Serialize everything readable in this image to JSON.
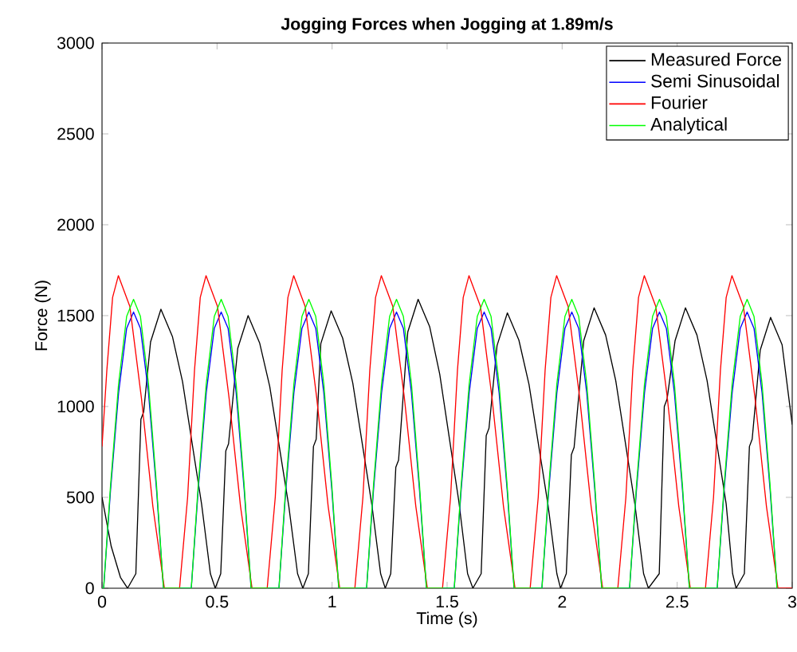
{
  "chart_data": {
    "type": "line",
    "title": "Jogging Forces when Jogging at 1.89m/s",
    "xlabel": "Time (s)",
    "ylabel": "Force (N)",
    "xlim": [
      0,
      3
    ],
    "ylim": [
      0,
      3000
    ],
    "xticks": [
      0,
      0.5,
      1,
      1.5,
      2,
      2.5,
      3
    ],
    "yticks": [
      0,
      500,
      1000,
      1500,
      2000,
      2500,
      3000
    ],
    "grid": false,
    "legend": "top right",
    "marker": "none",
    "line_style": "solid",
    "series": [
      {
        "name": "Measured Force",
        "color": "#000000",
        "x": [
          0,
          0.04,
          0.08,
          0.111,
          0.147,
          0.169,
          0.181,
          0.211,
          0.256,
          0.306,
          0.35,
          0.433,
          0.471,
          0.492,
          0.516,
          0.538,
          0.55,
          0.59,
          0.635,
          0.685,
          0.729,
          0.812,
          0.85,
          0.873,
          0.897,
          0.919,
          0.931,
          0.951,
          0.996,
          1.046,
          1.09,
          1.173,
          1.211,
          1.231,
          1.255,
          1.277,
          1.289,
          1.329,
          1.374,
          1.424,
          1.468,
          1.551,
          1.589,
          1.612,
          1.648,
          1.67,
          1.682,
          1.717,
          1.762,
          1.812,
          1.856,
          1.939,
          1.977,
          1.993,
          2.018,
          2.04,
          2.052,
          2.094,
          2.139,
          2.189,
          2.233,
          2.316,
          2.354,
          2.375,
          2.422,
          2.444,
          2.456,
          2.491,
          2.536,
          2.586,
          2.63,
          2.713,
          2.741,
          2.756,
          2.792,
          2.814,
          2.826,
          2.861,
          2.906,
          2.956,
          3.0
        ],
        "values": [
          500,
          230,
          60,
          0,
          80,
          930,
          970,
          1355,
          1535,
          1385,
          1136,
          461,
          80,
          0,
          80,
          755,
          795,
          1320,
          1500,
          1350,
          1110,
          450,
          80,
          0,
          80,
          780,
          820,
          1346,
          1526,
          1376,
          1129,
          458,
          80,
          0,
          80,
          665,
          705,
          1410,
          1590,
          1440,
          1177,
          477,
          80,
          0,
          80,
          840,
          880,
          1335,
          1515,
          1365,
          1121,
          455,
          80,
          0,
          80,
          735,
          775,
          1363,
          1543,
          1393,
          1142,
          463,
          80,
          0,
          80,
          1000,
          1040,
          1363,
          1543,
          1393,
          1142,
          463,
          80,
          0,
          80,
          780,
          820,
          1310,
          1490,
          1340,
          900
        ]
      },
      {
        "name": "Semi Sinusoidal",
        "color": "#0000ff",
        "x": [
          0,
          0.007,
          0.037,
          0.072,
          0.107,
          0.137,
          0.167,
          0.202,
          0.237,
          0.267,
          0.388,
          0.418,
          0.453,
          0.488,
          0.518,
          0.548,
          0.583,
          0.618,
          0.648,
          0.769,
          0.799,
          0.834,
          0.869,
          0.899,
          0.929,
          0.964,
          0.999,
          1.029,
          1.15,
          1.18,
          1.215,
          1.25,
          1.28,
          1.31,
          1.345,
          1.38,
          1.41,
          1.531,
          1.561,
          1.596,
          1.631,
          1.661,
          1.691,
          1.726,
          1.761,
          1.791,
          1.912,
          1.942,
          1.977,
          2.012,
          2.042,
          2.072,
          2.107,
          2.142,
          2.172,
          2.293,
          2.323,
          2.358,
          2.393,
          2.423,
          2.453,
          2.488,
          2.523,
          2.553,
          2.674,
          2.704,
          2.739,
          2.774,
          2.804,
          2.834,
          2.869,
          2.904,
          2.934
        ],
        "values": [
          0,
          0,
          540,
          1075,
          1430,
          1520,
          1430,
          1075,
          540,
          0,
          0,
          540,
          1075,
          1430,
          1520,
          1430,
          1075,
          540,
          0,
          0,
          540,
          1075,
          1430,
          1520,
          1430,
          1075,
          540,
          0,
          0,
          540,
          1075,
          1430,
          1520,
          1430,
          1075,
          540,
          0,
          0,
          540,
          1075,
          1430,
          1520,
          1430,
          1075,
          540,
          0,
          0,
          540,
          1075,
          1430,
          1520,
          1430,
          1075,
          540,
          0,
          0,
          540,
          1075,
          1430,
          1520,
          1430,
          1075,
          540,
          0,
          0,
          540,
          1075,
          1430,
          1520,
          1430,
          1075,
          540,
          0
        ]
      },
      {
        "name": "Fourier",
        "color": "#ff0000",
        "x": [
          0,
          0.021,
          0.046,
          0.071,
          0.121,
          0.171,
          0.221,
          0.271,
          0.337,
          0.372,
          0.402,
          0.427,
          0.452,
          0.502,
          0.552,
          0.602,
          0.652,
          0.718,
          0.753,
          0.783,
          0.808,
          0.833,
          0.883,
          0.933,
          0.983,
          1.033,
          1.099,
          1.134,
          1.164,
          1.189,
          1.214,
          1.264,
          1.314,
          1.364,
          1.414,
          1.48,
          1.515,
          1.545,
          1.57,
          1.595,
          1.645,
          1.695,
          1.745,
          1.795,
          1.861,
          1.896,
          1.926,
          1.951,
          1.976,
          2.026,
          2.076,
          2.126,
          2.176,
          2.242,
          2.277,
          2.307,
          2.332,
          2.357,
          2.407,
          2.457,
          2.507,
          2.557,
          2.623,
          2.658,
          2.688,
          2.713,
          2.738,
          2.788,
          2.838,
          2.888,
          2.938,
          3.0
        ],
        "values": [
          780,
          1200,
          1600,
          1720,
          1550,
          1050,
          450,
          0,
          0,
          500,
          1200,
          1600,
          1720,
          1550,
          1050,
          450,
          0,
          0,
          500,
          1200,
          1600,
          1720,
          1550,
          1050,
          450,
          0,
          0,
          500,
          1200,
          1600,
          1720,
          1550,
          1050,
          450,
          0,
          0,
          500,
          1200,
          1600,
          1720,
          1550,
          1050,
          450,
          0,
          0,
          500,
          1200,
          1600,
          1720,
          1550,
          1050,
          450,
          0,
          0,
          500,
          1200,
          1600,
          1720,
          1550,
          1050,
          450,
          0,
          0,
          500,
          1200,
          1600,
          1720,
          1550,
          1050,
          450,
          0,
          0
        ]
      },
      {
        "name": "Analytical",
        "color": "#00ff00",
        "x": [
          0,
          0.007,
          0.037,
          0.072,
          0.107,
          0.137,
          0.167,
          0.202,
          0.237,
          0.267,
          0.388,
          0.418,
          0.453,
          0.488,
          0.518,
          0.548,
          0.583,
          0.618,
          0.648,
          0.769,
          0.799,
          0.834,
          0.869,
          0.899,
          0.929,
          0.964,
          0.999,
          1.029,
          1.15,
          1.18,
          1.215,
          1.25,
          1.28,
          1.31,
          1.345,
          1.38,
          1.41,
          1.531,
          1.561,
          1.596,
          1.631,
          1.661,
          1.691,
          1.726,
          1.761,
          1.791,
          1.912,
          1.942,
          1.977,
          2.012,
          2.042,
          2.072,
          2.107,
          2.142,
          2.172,
          2.293,
          2.323,
          2.358,
          2.393,
          2.423,
          2.453,
          2.488,
          2.523,
          2.553,
          2.674,
          2.704,
          2.739,
          2.774,
          2.804,
          2.834,
          2.869,
          2.904,
          2.934
        ],
        "values": [
          0,
          0,
          565,
          1125,
          1495,
          1590,
          1495,
          1125,
          565,
          0,
          0,
          565,
          1125,
          1495,
          1590,
          1495,
          1125,
          565,
          0,
          0,
          565,
          1125,
          1495,
          1590,
          1495,
          1125,
          565,
          0,
          0,
          565,
          1125,
          1495,
          1590,
          1495,
          1125,
          565,
          0,
          0,
          565,
          1125,
          1495,
          1590,
          1495,
          1125,
          565,
          0,
          0,
          565,
          1125,
          1495,
          1590,
          1495,
          1125,
          565,
          0,
          0,
          565,
          1125,
          1495,
          1590,
          1495,
          1125,
          565,
          0,
          0,
          565,
          1125,
          1495,
          1590,
          1495,
          1125,
          565,
          0
        ]
      }
    ]
  }
}
